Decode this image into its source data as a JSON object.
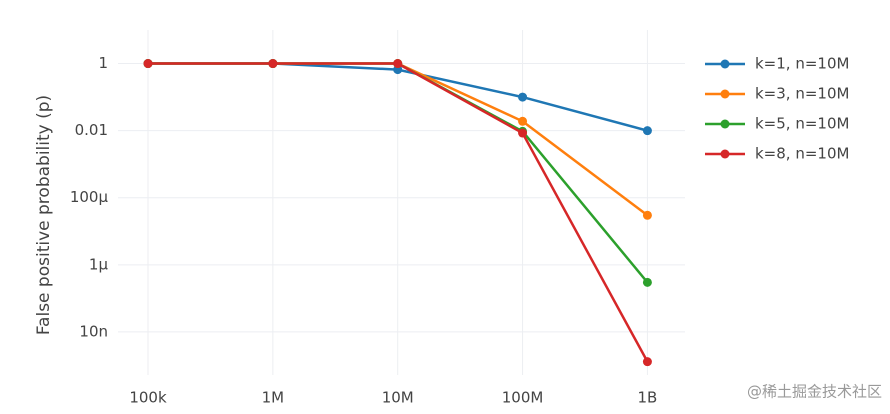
{
  "chart_data": {
    "type": "line",
    "y_label": "False positive probability (p)",
    "x": [
      100000,
      1000000,
      10000000,
      100000000,
      1000000000
    ],
    "xscale": "log",
    "yscale": "log",
    "xlim": [
      57500,
      2000000000
    ],
    "ylim": [
      5.2e-10,
      10
    ],
    "xticks": [
      {
        "value": 100000,
        "label": "100k"
      },
      {
        "value": 1000000,
        "label": "1M"
      },
      {
        "value": 10000000,
        "label": "10M"
      },
      {
        "value": 100000000,
        "label": "100M"
      },
      {
        "value": 1000000000,
        "label": "1B"
      }
    ],
    "yticks": [
      1,
      0.01,
      {
        "value": 0.0001,
        "label": "100μ"
      },
      {
        "value": 1e-06,
        "label": "1μ"
      },
      {
        "value": 1e-08,
        "label": "10n"
      }
    ],
    "grid": true,
    "legend": "right",
    "series": [
      {
        "name": "k=1, n=10M",
        "color": "#1f77b4",
        "values": [
          1,
          1,
          0.66,
          0.1,
          0.01
        ]
      },
      {
        "name": "k=3, n=10M",
        "color": "#ff7f0e",
        "values": [
          1,
          1,
          1,
          0.019,
          3e-05
        ]
      },
      {
        "name": "k=5, n=10M",
        "color": "#2ca02c",
        "values": [
          1,
          1,
          1,
          0.0095,
          3e-07
        ]
      },
      {
        "name": "k=8, n=10M",
        "color": "#d62728",
        "values": [
          1,
          1,
          1,
          0.0085,
          1.3e-09
        ]
      }
    ],
    "watermark": "@稀土掘金技术社区"
  }
}
